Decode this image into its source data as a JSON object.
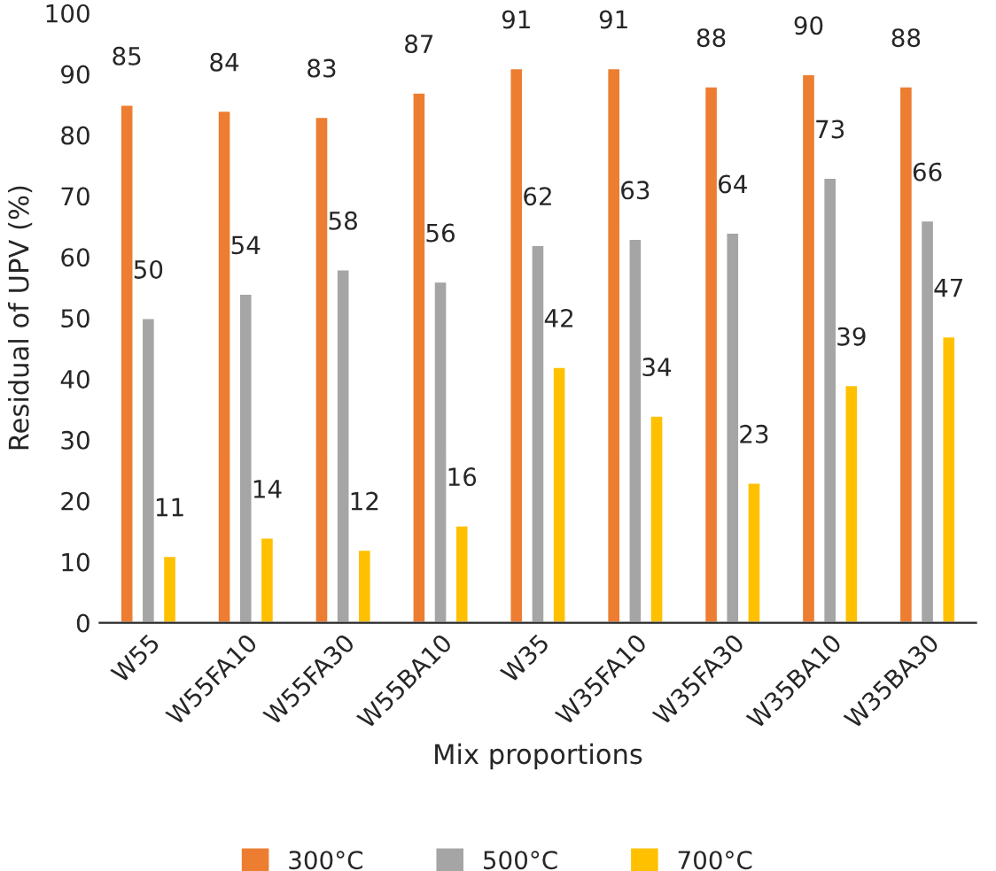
{
  "chart_data": {
    "type": "bar",
    "xlabel": "Mix proportions",
    "ylabel": "Residual of UPV (%)",
    "categories": [
      "W55",
      "W55FA10",
      "W55FA30",
      "W55BA10",
      "W35",
      "W35FA10",
      "W35FA30",
      "W35BA10",
      "W35BA30"
    ],
    "series": [
      {
        "name": "300°C",
        "color": "#ed7d31",
        "values": [
          85,
          84,
          83,
          87,
          91,
          91,
          88,
          90,
          88
        ]
      },
      {
        "name": "500°C",
        "color": "#a5a5a5",
        "values": [
          50,
          54,
          58,
          56,
          62,
          63,
          64,
          73,
          66
        ]
      },
      {
        "name": "700°C",
        "color": "#ffc000",
        "values": [
          11,
          14,
          12,
          16,
          42,
          34,
          23,
          39,
          47
        ]
      }
    ],
    "ylim": [
      0,
      100
    ],
    "yticks": [
      0,
      10,
      20,
      30,
      40,
      50,
      60,
      70,
      80,
      90,
      100
    ],
    "data_labels": true,
    "legend": "bottom",
    "grid": false
  }
}
